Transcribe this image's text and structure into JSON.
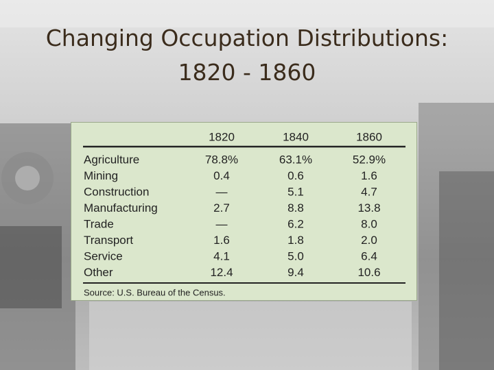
{
  "title_lines": [
    "Changing Occupation Distributions:",
    "1820 - 1860"
  ],
  "table": {
    "header": [
      "1820",
      "1840",
      "1860"
    ],
    "rows": [
      [
        "Agriculture",
        "78.8%",
        "63.1%",
        "52.9%"
      ],
      [
        "Mining",
        "0.4",
        "0.6",
        "1.6"
      ],
      [
        "Construction",
        "—",
        "5.1",
        "4.7"
      ],
      [
        "Manufacturing",
        "2.7",
        "8.8",
        "13.8"
      ],
      [
        "Trade",
        "—",
        "6.2",
        "8.0"
      ],
      [
        "Transport",
        "1.6",
        "1.8",
        "2.0"
      ],
      [
        "Service",
        "4.1",
        "5.0",
        "6.4"
      ],
      [
        "Other",
        "12.4",
        "9.4",
        "10.6"
      ]
    ],
    "source": "Source: U.S. Bureau of the Census."
  }
}
